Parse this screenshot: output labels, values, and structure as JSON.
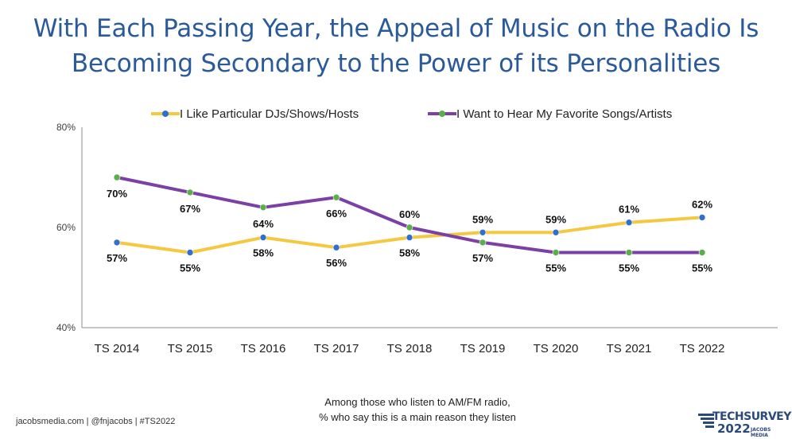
{
  "page": {
    "title_line1": "With Each Passing Year, the Appeal of Music on the Radio Is",
    "title_line2": "Becoming Secondary to the Power of its Personalities",
    "footer_left": "jacobsmedia.com   |   @fnjacobs   |   #TS2022",
    "note_line1": "Among those who listen to AM/FM radio,",
    "note_line2": "% who say this is a main reason they listen",
    "logo": {
      "line1": "TECHSURVEY",
      "line2": "2022",
      "line3": "JACOBS MEDIA"
    },
    "colors": {
      "title": "#2a5a9a",
      "series1": "#f5c842",
      "series2": "#7b3fa6",
      "marker1": "#2f6fd0",
      "marker2": "#59b04a"
    }
  },
  "chart_data": {
    "type": "line",
    "categories": [
      "TS 2014",
      "TS 2015",
      "TS 2016",
      "TS 2017",
      "TS 2018",
      "TS 2019",
      "TS 2020",
      "TS 2021",
      "TS 2022"
    ],
    "series": [
      {
        "name": "I Like Particular DJs/Shows/Hosts",
        "values": [
          57,
          55,
          58,
          56,
          58,
          59,
          59,
          61,
          62
        ],
        "color": "#f5c842",
        "marker": "#2f6fd0",
        "labels": [
          "57%",
          "55%",
          "58%",
          "56%",
          "58%",
          "59%",
          "59%",
          "61%",
          "62%"
        ]
      },
      {
        "name": "I Want to Hear My Favorite Songs/Artists",
        "values": [
          70,
          67,
          64,
          66,
          60,
          57,
          55,
          55,
          55
        ],
        "color": "#7b3fa6",
        "marker": "#59b04a",
        "labels": [
          "70%",
          "67%",
          "64%",
          "66%",
          "60%",
          "57%",
          "55%",
          "55%",
          "55%"
        ]
      }
    ],
    "ylim": [
      40,
      80
    ],
    "yticks": [
      "40%",
      "60%",
      "80%"
    ],
    "ytick_values": [
      40,
      60,
      80
    ],
    "legend": "top",
    "grid": false
  }
}
